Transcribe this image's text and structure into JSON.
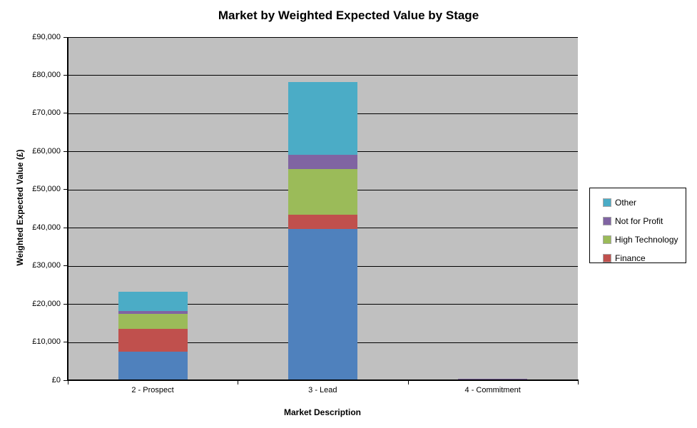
{
  "title": "Market by Weighted Expected Value by Stage",
  "axes": {
    "y_title": "Weighted Expected Value (£)",
    "x_title": "Market Description",
    "y_tick_labels": [
      "£0",
      "£10,000",
      "£20,000",
      "£30,000",
      "£40,000",
      "£50,000",
      "£60,000",
      "£70,000",
      "£80,000",
      "£90,000"
    ]
  },
  "legend": {
    "items": [
      {
        "label": "Other",
        "color": "#4bacc6"
      },
      {
        "label": "Not for Profit",
        "color": "#8064a2"
      },
      {
        "label": "High Technology",
        "color": "#9bbb59"
      },
      {
        "label": "Finance",
        "color": "#c0504d"
      }
    ]
  },
  "colors": {
    "plot_background": "#c0c0c0",
    "gridline": "#000000",
    "axis": "#000000",
    "unlabeled_bottom_series": "#4f81bd"
  },
  "chart_data": {
    "type": "bar",
    "stacked": true,
    "title": "Market by Weighted Expected Value by Stage",
    "xlabel": "Market Description",
    "ylabel": "Weighted Expected Value (£)",
    "ylim": [
      0,
      90000
    ],
    "y_tick_step": 10000,
    "grid": "horizontal",
    "legend_position": "right",
    "categories": [
      "2 - Prospect",
      "3 - Lead",
      "4 - Commitment"
    ],
    "series": [
      {
        "name": "",
        "in_legend": false,
        "color": "#4f81bd",
        "values": [
          7500,
          39600,
          150
        ]
      },
      {
        "name": "Finance",
        "in_legend": true,
        "color": "#c0504d",
        "values": [
          6000,
          3900,
          0
        ]
      },
      {
        "name": "High Technology",
        "in_legend": true,
        "color": "#9bbb59",
        "values": [
          3900,
          11800,
          0
        ]
      },
      {
        "name": "Not for Profit",
        "in_legend": true,
        "color": "#8064a2",
        "values": [
          750,
          3900,
          200
        ]
      },
      {
        "name": "Other",
        "in_legend": true,
        "color": "#4bacc6",
        "values": [
          5100,
          19100,
          0
        ]
      }
    ],
    "stack_totals": [
      23250,
      78300,
      350
    ]
  }
}
